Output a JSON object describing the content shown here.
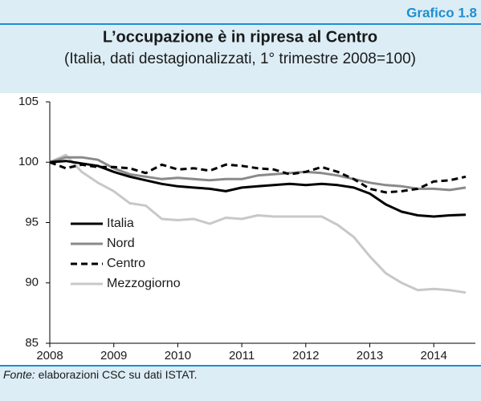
{
  "chart_data": {
    "type": "line",
    "figure_label": "Grafico 1.8",
    "title": "L’occupazione è in ripresa al Centro",
    "subtitle": "(Italia, dati destagionalizzati, 1° trimestre 2008=100)",
    "source_label": "Fonte:",
    "source": "elaborazioni CSC su dati ISTAT.",
    "x": [
      2008,
      2008.25,
      2008.5,
      2008.75,
      2009,
      2009.25,
      2009.5,
      2009.75,
      2010,
      2010.25,
      2010.5,
      2010.75,
      2011,
      2011.25,
      2011.5,
      2011.75,
      2012,
      2012.25,
      2012.5,
      2012.75,
      2013,
      2013.25,
      2013.5,
      2013.75,
      2014,
      2014.25,
      2014.5
    ],
    "series": [
      {
        "name": "Italia",
        "color": "#000000",
        "dashed": false,
        "values": [
          100,
          100.1,
          99.9,
          99.7,
          99.2,
          98.8,
          98.5,
          98.2,
          98.0,
          97.9,
          97.8,
          97.6,
          97.9,
          98.0,
          98.1,
          98.2,
          98.1,
          98.2,
          98.1,
          97.9,
          97.4,
          96.5,
          95.9,
          95.6,
          95.5,
          95.6,
          95.65
        ]
      },
      {
        "name": "Nord",
        "color": "#8a8a8a",
        "dashed": false,
        "values": [
          100,
          100.4,
          100.4,
          100.2,
          99.5,
          99.0,
          98.8,
          98.6,
          98.7,
          98.6,
          98.5,
          98.6,
          98.6,
          98.9,
          99.0,
          99.1,
          99.2,
          99.1,
          98.9,
          98.6,
          98.3,
          98.1,
          98.0,
          97.8,
          97.8,
          97.7,
          97.9
        ]
      },
      {
        "name": "Centro",
        "color": "#000000",
        "dashed": true,
        "values": [
          100,
          99.5,
          99.8,
          99.6,
          99.6,
          99.5,
          99.1,
          99.8,
          99.4,
          99.5,
          99.3,
          99.8,
          99.7,
          99.5,
          99.4,
          99.0,
          99.2,
          99.6,
          99.2,
          98.6,
          97.8,
          97.5,
          97.6,
          97.8,
          98.4,
          98.5,
          98.8
        ]
      },
      {
        "name": "Mezzogiorno",
        "color": "#c8c8c8",
        "dashed": false,
        "values": [
          100,
          100.6,
          99.2,
          98.3,
          97.6,
          96.6,
          96.4,
          95.3,
          95.2,
          95.3,
          94.9,
          95.4,
          95.3,
          95.6,
          95.5,
          95.5,
          95.5,
          95.5,
          94.8,
          93.8,
          92.2,
          90.8,
          90.0,
          89.4,
          89.5,
          89.4,
          89.2
        ]
      }
    ],
    "xlim": [
      2008,
      2014.65
    ],
    "xticks": [
      2008,
      2009,
      2010,
      2011,
      2012,
      2013,
      2014
    ],
    "ylim": [
      85,
      105
    ],
    "yticks": [
      85,
      90,
      95,
      100,
      105
    ],
    "legend": "lower-left"
  }
}
